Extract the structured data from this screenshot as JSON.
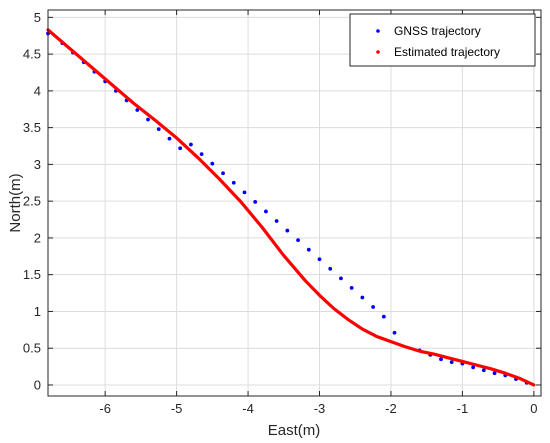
{
  "chart_data": {
    "type": "line",
    "xlabel": "East(m)",
    "ylabel": "North(m)",
    "xlim": [
      -6.8,
      0.1
    ],
    "ylim": [
      -0.15,
      5.1
    ],
    "x_ticks": [
      -6,
      -5,
      -4,
      -3,
      -2,
      -1,
      0
    ],
    "y_ticks": [
      0,
      0.5,
      1,
      1.5,
      2,
      2.5,
      3,
      3.5,
      4,
      4.5,
      5
    ],
    "grid": true,
    "legend_placement": "top-right",
    "series": [
      {
        "name": "GNSS trajectory",
        "style": "dots",
        "color": "#0000ff",
        "x": [
          -6.8,
          -6.6,
          -6.45,
          -6.3,
          -6.15,
          -6.0,
          -5.85,
          -5.7,
          -5.55,
          -5.4,
          -5.25,
          -5.1,
          -4.95,
          -4.8,
          -4.65,
          -4.5,
          -4.35,
          -4.2,
          -4.05,
          -3.9,
          -3.75,
          -3.6,
          -3.45,
          -3.3,
          -3.15,
          -3.0,
          -2.85,
          -2.7,
          -2.55,
          -2.4,
          -2.25,
          -2.1,
          -1.95,
          -1.6,
          -1.45,
          -1.3,
          -1.15,
          -1.0,
          -0.85,
          -0.7,
          -0.55,
          -0.4,
          -0.25,
          -0.1
        ],
        "y": [
          4.78,
          4.65,
          4.52,
          4.39,
          4.26,
          4.13,
          4.0,
          3.87,
          3.74,
          3.61,
          3.48,
          3.35,
          3.22,
          3.27,
          3.14,
          3.01,
          2.88,
          2.75,
          2.62,
          2.49,
          2.36,
          2.23,
          2.1,
          1.97,
          1.84,
          1.71,
          1.58,
          1.45,
          1.32,
          1.19,
          1.06,
          0.93,
          0.71,
          0.47,
          0.41,
          0.35,
          0.31,
          0.29,
          0.24,
          0.2,
          0.16,
          0.13,
          0.08,
          0.03
        ]
      },
      {
        "name": "Estimated trajectory",
        "style": "line",
        "color": "#ff0000",
        "x": [
          -6.8,
          -6.5,
          -6.2,
          -5.9,
          -5.6,
          -5.3,
          -5.0,
          -4.7,
          -4.4,
          -4.1,
          -3.8,
          -3.5,
          -3.2,
          -3.0,
          -2.8,
          -2.6,
          -2.4,
          -2.2,
          -2.0,
          -1.8,
          -1.6,
          -1.4,
          -1.2,
          -1.0,
          -0.8,
          -0.6,
          -0.4,
          -0.2,
          0.0
        ],
        "y": [
          4.83,
          4.58,
          4.33,
          4.08,
          3.83,
          3.6,
          3.36,
          3.09,
          2.8,
          2.49,
          2.14,
          1.76,
          1.42,
          1.22,
          1.04,
          0.89,
          0.76,
          0.66,
          0.59,
          0.52,
          0.46,
          0.42,
          0.37,
          0.32,
          0.27,
          0.22,
          0.16,
          0.09,
          0.0
        ]
      }
    ]
  }
}
